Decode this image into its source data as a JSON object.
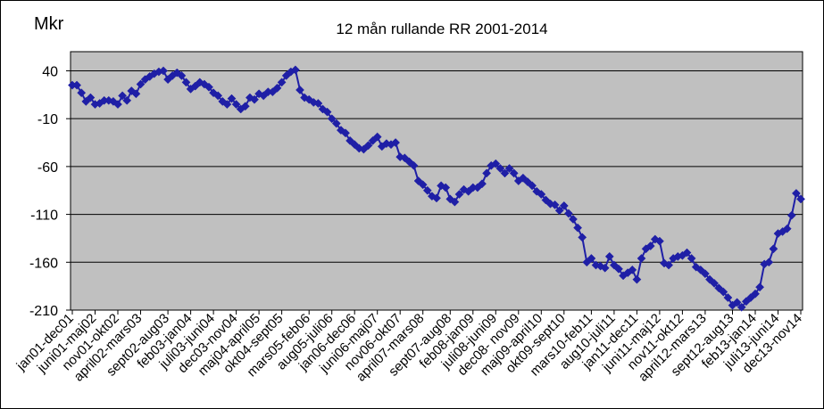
{
  "chart_data": {
    "type": "line",
    "title": "12 mån rullande RR 2001-2014",
    "ylabel": "Mkr",
    "xlabel": "",
    "ylim": [
      -210,
      60
    ],
    "yticks": [
      40,
      -10,
      -60,
      -110,
      -160,
      -210
    ],
    "grid": true,
    "legend": "none",
    "colors": {
      "series": "#1f1fa6",
      "plot_bg": "#c0c0c0",
      "grid": "#000000"
    },
    "x_tick_labels": [
      "jan01-dec01",
      "juni01-maj02",
      "nov01-okt02",
      "april02-mars03",
      "sept02-aug03",
      "feb03-jan04",
      "juli03-juni04",
      "dec03-nov04",
      "maj04-april05",
      "okt04-sept05",
      "mars05-feb06",
      "aug05-juli06",
      "jan06-dec06",
      "juni06-maj07",
      "nov06-okt07",
      "april07-mars08",
      "sept07-aug08",
      "feb08-jan09",
      "juli08-juni09",
      "dec08- nov09",
      "maj09-april10",
      "okt09-sept10",
      "mars10-feb11",
      "aug10-juli11",
      "jan11-dec11",
      "juni11-maj12",
      "nov11-okt12",
      "april12-mars13",
      "sept12-aug13",
      "feb13-jan14",
      "juli13-juni14",
      "dec13-nov14"
    ],
    "series": [
      {
        "values": [
          25,
          25,
          17,
          8,
          12,
          5,
          6,
          9,
          9,
          8,
          5,
          14,
          9,
          19,
          16,
          26,
          31,
          34,
          37,
          39,
          40,
          31,
          35,
          38,
          35,
          28,
          21,
          24,
          28,
          26,
          23,
          17,
          14,
          8,
          5,
          11,
          5,
          0,
          3,
          12,
          10,
          16,
          14,
          18,
          18,
          22,
          28,
          35,
          39,
          41,
          20,
          12,
          10,
          7,
          6,
          0,
          -3,
          -10,
          -15,
          -22,
          -25,
          -33,
          -37,
          -41,
          -42,
          -38,
          -33,
          -29,
          -39,
          -36,
          -37,
          -35,
          -50,
          -51,
          -55,
          -59,
          -75,
          -79,
          -85,
          -91,
          -93,
          -80,
          -82,
          -94,
          -97,
          -89,
          -84,
          -86,
          -82,
          -82,
          -78,
          -67,
          -59,
          -57,
          -62,
          -67,
          -62,
          -67,
          -75,
          -72,
          -76,
          -80,
          -86,
          -89,
          -95,
          -99,
          -100,
          -106,
          -101,
          -109,
          -115,
          -124,
          -134,
          -160,
          -156,
          -163,
          -164,
          -166,
          -154,
          -163,
          -167,
          -174,
          -171,
          -168,
          -178,
          -156,
          -146,
          -143,
          -136,
          -138,
          -161,
          -163,
          -156,
          -154,
          -153,
          -150,
          -156,
          -165,
          -168,
          -172,
          -178,
          -182,
          -187,
          -191,
          -197,
          -205,
          -202,
          -207,
          -201,
          -197,
          -193,
          -186,
          -162,
          -160,
          -146,
          -130,
          -128,
          -125,
          -111,
          -88,
          -94
        ]
      }
    ]
  }
}
